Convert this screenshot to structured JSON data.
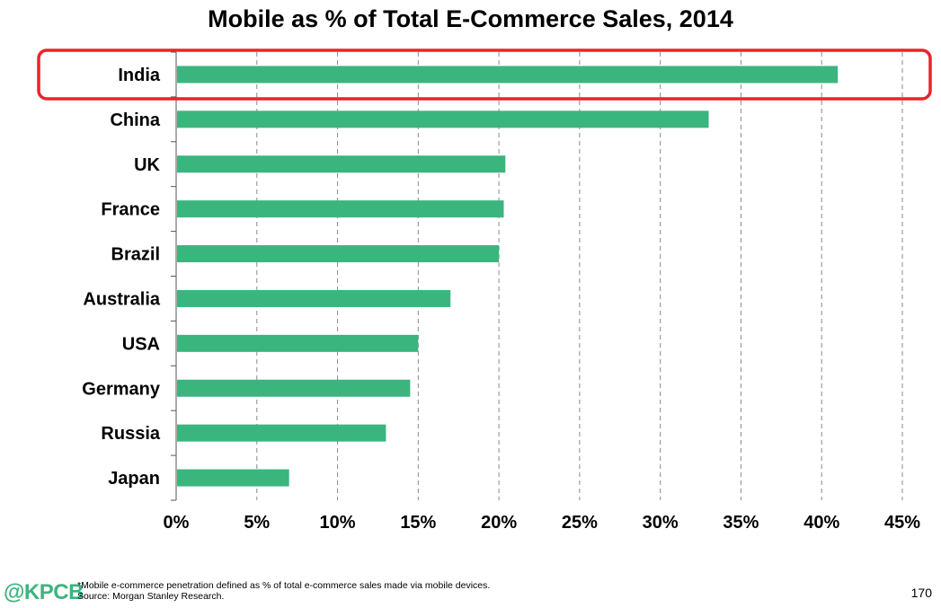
{
  "chart_data": {
    "type": "bar",
    "orientation": "horizontal",
    "title": "Mobile as % of Total E-Commerce Sales, 2014",
    "categories": [
      "India",
      "China",
      "UK",
      "France",
      "Brazil",
      "Australia",
      "USA",
      "Germany",
      "Russia",
      "Japan"
    ],
    "values": [
      41,
      33,
      20.4,
      20.3,
      20,
      17,
      15,
      14.5,
      13,
      7
    ],
    "unit": "%",
    "xlim": [
      0,
      45
    ],
    "x_ticks": [
      0,
      5,
      10,
      15,
      20,
      25,
      30,
      35,
      40,
      45
    ],
    "x_tick_labels": [
      "0%",
      "5%",
      "10%",
      "15%",
      "20%",
      "25%",
      "30%",
      "35%",
      "40%",
      "45%"
    ],
    "grid": "vertical dashed",
    "bar_color": "#3bb57e",
    "highlight": {
      "category": "India",
      "color": "#e8242b"
    }
  },
  "footer": {
    "logo": "@KPCB",
    "note": "*Mobile e-commerce penetration defined as % of total e-commerce sales made via mobile devices.",
    "source": "Source: Morgan Stanley Research.",
    "page_number": "170"
  }
}
